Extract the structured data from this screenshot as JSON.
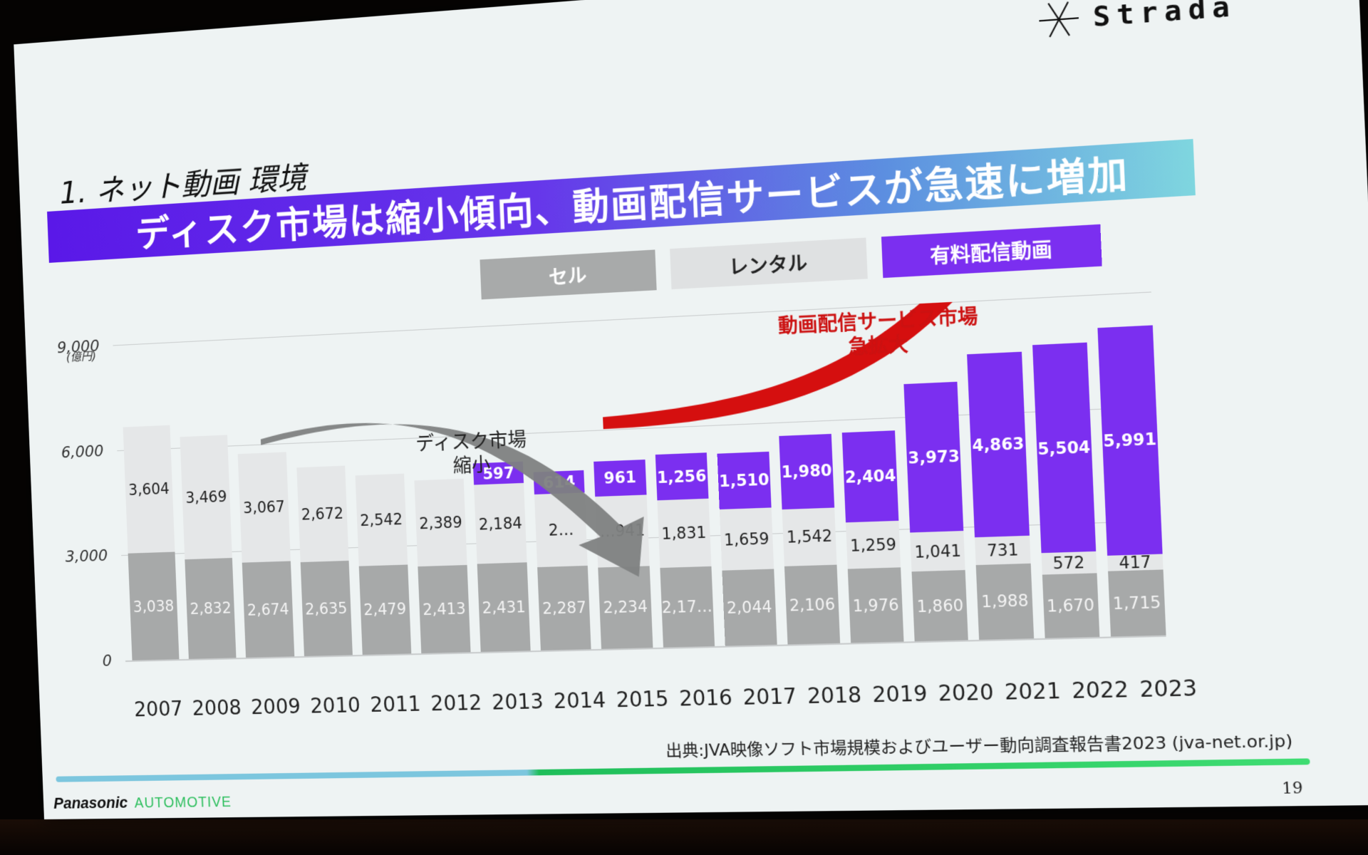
{
  "slide": {
    "brand_logo": "Strada",
    "brand_icon": "asterisk-star-icon",
    "section_title": "1. ネット動画 環境",
    "headline": "ディスク市場は縮小傾向、動画配信サービスが急速に増加",
    "source": "出典:JVA映像ソフト市場規模およびユーザー動向調査報告書2023 (jva-net.or.jp)",
    "footer_brand": "Panasonic",
    "footer_division": "AUTOMOTIVE",
    "page_number": "19",
    "colors": {
      "headline_start": "#5a18e8",
      "headline_end": "#7fd6df",
      "sell": "#a7a9a9",
      "rental": "#e5e7e8",
      "streaming": "#7b2ff0",
      "arrow_up": "#d50f0f",
      "arrow_down": "#7e8181",
      "rule_left": "#7cc6de",
      "rule_right": "#2fd267"
    }
  },
  "legend": {
    "sell": "セル",
    "rental": "レンタル",
    "streaming": "有料配信動画"
  },
  "annotations": {
    "disc_line1": "ディスク市場",
    "disc_line2": "縮小",
    "stream_line1": "動画配信サービス市場",
    "stream_line2": "急拡大"
  },
  "axis": {
    "unit": "(億円)",
    "ticks": [
      "0",
      "3,000",
      "6,000",
      "9,000"
    ]
  },
  "chart_data": {
    "type": "bar",
    "stacked": true,
    "title": "ディスク市場は縮小傾向、動画配信サービスが急速に増加",
    "xlabel": "",
    "ylabel": "(億円)",
    "ylim": [
      0,
      9000
    ],
    "yticks": [
      0,
      3000,
      6000,
      9000
    ],
    "grid": true,
    "legend_position": "top-right",
    "categories": [
      "2007",
      "2008",
      "2009",
      "2010",
      "2011",
      "2012",
      "2013",
      "2014",
      "2015",
      "2016",
      "2017",
      "2018",
      "2019",
      "2020",
      "2021",
      "2022",
      "2023"
    ],
    "series": [
      {
        "name": "セル",
        "values": [
          3038,
          2832,
          2674,
          2635,
          2479,
          2413,
          2431,
          2287,
          2234,
          2171,
          2044,
          2106,
          1976,
          1860,
          1988,
          1670,
          1715
        ]
      },
      {
        "name": "レンタル",
        "values": [
          3604,
          3469,
          3067,
          2672,
          2542,
          2389,
          2184,
          null,
          1941,
          1831,
          1659,
          1542,
          1259,
          1041,
          731,
          572,
          417
        ]
      },
      {
        "name": "有料配信動画",
        "values": [
          null,
          null,
          null,
          null,
          null,
          null,
          597,
          614,
          961,
          1256,
          1510,
          1980,
          2404,
          3973,
          4863,
          5504,
          5991
        ]
      }
    ],
    "labels_display": {
      "sell": [
        "3,038",
        "2,832",
        "2,674",
        "2,635",
        "2,479",
        "2,413",
        "2,431",
        "2,287",
        "2,234",
        "2,17…",
        "2,044",
        "2,106",
        "1,976",
        "1,860",
        "1,988",
        "1,670",
        "1,715"
      ],
      "rental": [
        "3,604",
        "3,469",
        "3,067",
        "2,672",
        "2,542",
        "2,389",
        "2,184",
        "2…",
        "…941",
        "1,831",
        "1,659",
        "1,542",
        "1,259",
        "1,041",
        "731",
        "572",
        "417"
      ],
      "streaming": [
        "",
        "",
        "",
        "",
        "",
        "",
        "597",
        "614",
        "961",
        "1,256",
        "1,510",
        "1,980",
        "2,404",
        "3,973",
        "4,863",
        "5,504",
        "5,991"
      ]
    },
    "annotations": [
      {
        "text": "ディスク市場 縮小",
        "type": "down-arrow",
        "from": "2009",
        "to": "2016",
        "color": "#7e8181"
      },
      {
        "text": "動画配信サービス市場 急拡大",
        "type": "up-arrow",
        "from": "2016",
        "to": "2022",
        "color": "#d50f0f"
      }
    ]
  }
}
